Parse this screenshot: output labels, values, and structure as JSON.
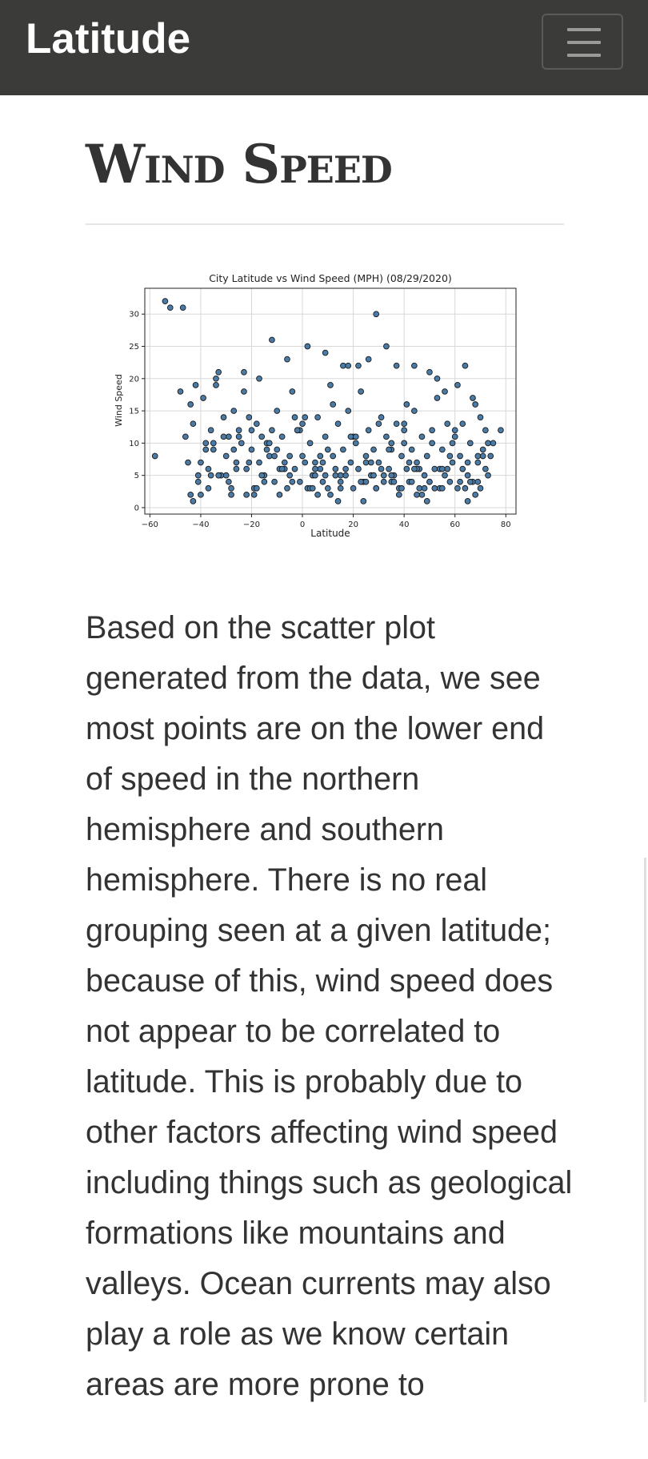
{
  "navbar": {
    "brand": "Latitude",
    "toggler_icon": "hamburger-menu-icon"
  },
  "page": {
    "heading": "Wind Speed",
    "paragraph": "Based on the scatter plot generated from the data, we see most points are on the lower end of speed in the northern hemisphere and southern hemisphere. There is no real grouping seen at a given latitude; because of this, wind speed does not appear to be correlated to latitude. This is probably due to other factors affecting wind speed including things such as geological formations like mountains and valleys. Ocean currents may also play a role as we know certain areas are more prone to"
  },
  "chart_data": {
    "type": "scatter",
    "title": "City Latitude vs Wind Speed (MPH) (08/29/2020)",
    "xlabel": "Latitude",
    "ylabel": "Wind Speed",
    "xlim": [
      -62,
      84
    ],
    "ylim": [
      -1,
      34
    ],
    "xticks": [
      -60,
      -40,
      -20,
      0,
      20,
      40,
      60,
      80
    ],
    "yticks": [
      0,
      5,
      10,
      15,
      20,
      25,
      30
    ],
    "grid": true,
    "marker_color": "#4a7aa6",
    "edge_color": "#1a1a1a",
    "x": [
      -54,
      -52,
      -47,
      -48,
      -46,
      -45,
      -44,
      -43,
      -42,
      -41,
      -40,
      -39,
      -38,
      -37,
      -36,
      -35,
      -34,
      -33,
      -32,
      -31,
      -30,
      -29,
      -28,
      -27,
      -26,
      -25,
      -24,
      -23,
      -22,
      -21,
      -20,
      -19,
      -18,
      -17,
      -16,
      -15,
      -14,
      -13,
      -12,
      -11,
      -10,
      -9,
      -8,
      -7,
      -6,
      -5,
      -4,
      -3,
      -2,
      -1,
      0,
      1,
      2,
      3,
      4,
      5,
      6,
      7,
      8,
      9,
      10,
      11,
      12,
      13,
      14,
      15,
      16,
      17,
      18,
      19,
      20,
      21,
      22,
      23,
      24,
      25,
      26,
      27,
      28,
      29,
      30,
      31,
      32,
      33,
      34,
      35,
      36,
      37,
      38,
      39,
      40,
      41,
      42,
      43,
      44,
      45,
      46,
      47,
      48,
      49,
      50,
      51,
      52,
      53,
      54,
      55,
      56,
      57,
      58,
      59,
      60,
      61,
      62,
      63,
      64,
      65,
      66,
      67,
      68,
      69,
      70,
      71,
      72,
      73,
      74,
      75,
      -58,
      -43,
      -37,
      -34,
      -28,
      -23,
      -21,
      -17,
      -16,
      -12,
      -6,
      -3,
      2,
      6,
      9,
      12,
      16,
      18,
      22,
      26,
      29,
      33,
      37,
      40,
      41,
      44,
      46,
      50,
      53,
      56,
      61,
      64,
      67,
      72,
      78,
      -40,
      -35,
      -30,
      -25,
      -20,
      -15,
      -10,
      -5,
      0,
      5,
      10,
      15,
      20,
      25,
      30,
      35,
      40,
      45,
      50,
      55,
      60,
      65,
      70,
      -33,
      -27,
      -19,
      -13,
      -7,
      -1,
      3,
      7,
      13,
      19,
      23,
      27,
      31,
      35,
      39,
      43,
      47,
      51,
      57,
      63,
      69,
      -36,
      -31,
      -22,
      -14,
      -8,
      -2,
      4,
      8,
      14,
      21,
      28,
      34,
      38,
      42,
      48,
      54,
      59,
      66,
      71,
      -44,
      -41,
      -38,
      -26,
      -18,
      -11,
      -4,
      1,
      11,
      17,
      24,
      32,
      36,
      44,
      52,
      58,
      62,
      68,
      73,
      5,
      15,
      25,
      35,
      45,
      55,
      65,
      -29,
      -9,
      9,
      29,
      49,
      69
    ],
    "y": [
      32,
      31,
      31,
      18,
      11,
      7,
      16,
      13,
      19,
      4,
      2,
      17,
      10,
      6,
      12,
      9,
      19,
      21,
      5,
      14,
      8,
      11,
      3,
      15,
      7,
      12,
      10,
      18,
      6,
      14,
      9,
      3,
      13,
      7,
      11,
      5,
      10,
      8,
      12,
      4,
      9,
      6,
      11,
      7,
      3,
      5,
      18,
      6,
      12,
      4,
      8,
      14,
      3,
      10,
      5,
      7,
      2,
      6,
      4,
      11,
      3,
      19,
      8,
      6,
      13,
      4,
      9,
      5,
      15,
      7,
      3,
      10,
      6,
      18,
      4,
      8,
      12,
      5,
      9,
      3,
      7,
      14,
      4,
      11,
      6,
      10,
      5,
      13,
      3,
      8,
      12,
      6,
      4,
      9,
      15,
      7,
      3,
      11,
      5,
      8,
      4,
      12,
      6,
      17,
      3,
      9,
      5,
      13,
      4,
      7,
      11,
      3,
      8,
      6,
      22,
      5,
      10,
      4,
      16,
      7,
      3,
      9,
      12,
      5,
      8,
      10,
      8,
      1,
      3,
      20,
      2,
      21,
      7,
      20,
      5,
      26,
      23,
      14,
      25,
      14,
      24,
      16,
      22,
      22,
      22,
      23,
      30,
      25,
      22,
      13,
      16,
      22,
      6,
      21,
      20,
      18,
      19,
      3,
      17,
      6,
      12,
      7,
      10,
      5,
      11,
      12,
      4,
      15,
      8,
      13,
      6,
      9,
      5,
      11,
      7,
      13,
      4,
      10,
      6,
      4,
      3,
      12,
      7,
      14,
      5,
      9,
      2,
      10,
      6,
      12,
      3,
      8,
      5,
      11,
      4,
      7,
      6,
      9,
      3,
      4,
      2,
      10,
      6,
      13,
      8,
      5,
      11,
      2,
      9,
      6,
      12,
      3,
      7,
      1,
      11,
      5,
      9,
      2,
      7,
      3,
      6,
      10,
      4,
      8,
      2,
      5,
      9,
      6,
      3,
      8,
      4,
      7,
      2,
      6,
      1,
      5,
      4,
      6,
      3,
      8,
      4,
      2,
      10,
      5,
      3,
      4,
      5,
      2,
      6,
      1,
      4,
      2,
      5,
      3,
      1,
      4
    ]
  }
}
